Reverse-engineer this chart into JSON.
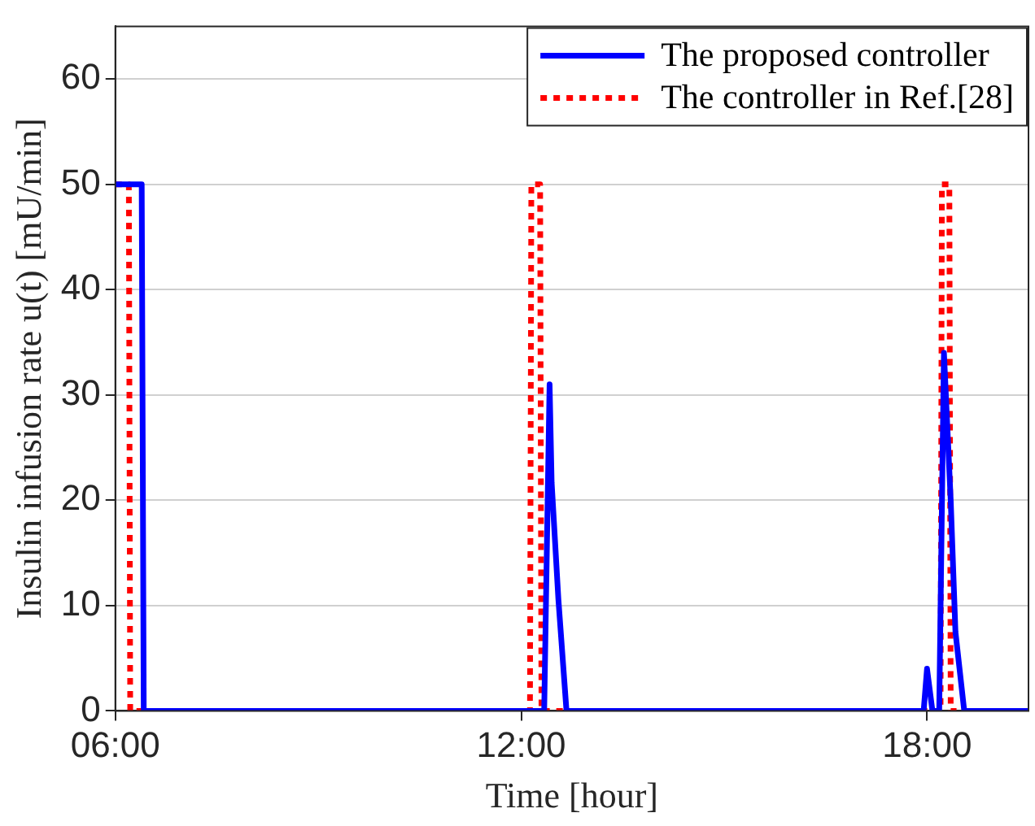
{
  "chart_data": {
    "type": "line",
    "xlabel": "Time [hour]",
    "ylabel": "Insulin infusion rate u(t) [mU/min]",
    "xlim": [
      6,
      19.5
    ],
    "xticks": [
      {
        "value": 6,
        "label": "06:00"
      },
      {
        "value": 12,
        "label": "12:00"
      },
      {
        "value": 18,
        "label": "18:00"
      }
    ],
    "ylim": [
      0,
      65
    ],
    "yticks": [
      0,
      10,
      20,
      30,
      40,
      50,
      60
    ],
    "grid": "y",
    "legend": "top right",
    "marker": "none",
    "series": [
      {
        "name": "The proposed controller",
        "color": "#0000ff",
        "line_style": "solid",
        "x": [
          6,
          6.39,
          6.42,
          12.34,
          12.42,
          12.45,
          12.55,
          12.67,
          17.95,
          18.0,
          18.08,
          18.18,
          18.25,
          18.35,
          18.42,
          18.55,
          19.5
        ],
        "values": [
          50,
          50,
          0,
          0,
          31,
          21.7,
          10.6,
          0,
          0,
          4,
          0,
          0,
          34,
          20,
          7.5,
          0,
          0
        ]
      },
      {
        "name": "The controller in Ref.[28]",
        "color": "#ff0000",
        "line_style": "dotted",
        "x": [
          6,
          6.2,
          6.22,
          12.13,
          12.15,
          12.28,
          12.3,
          18.2,
          18.22,
          18.33,
          18.35,
          19.5
        ],
        "values": [
          50,
          50,
          0,
          0,
          50,
          50,
          0,
          0,
          50,
          50,
          0,
          0
        ]
      }
    ]
  }
}
